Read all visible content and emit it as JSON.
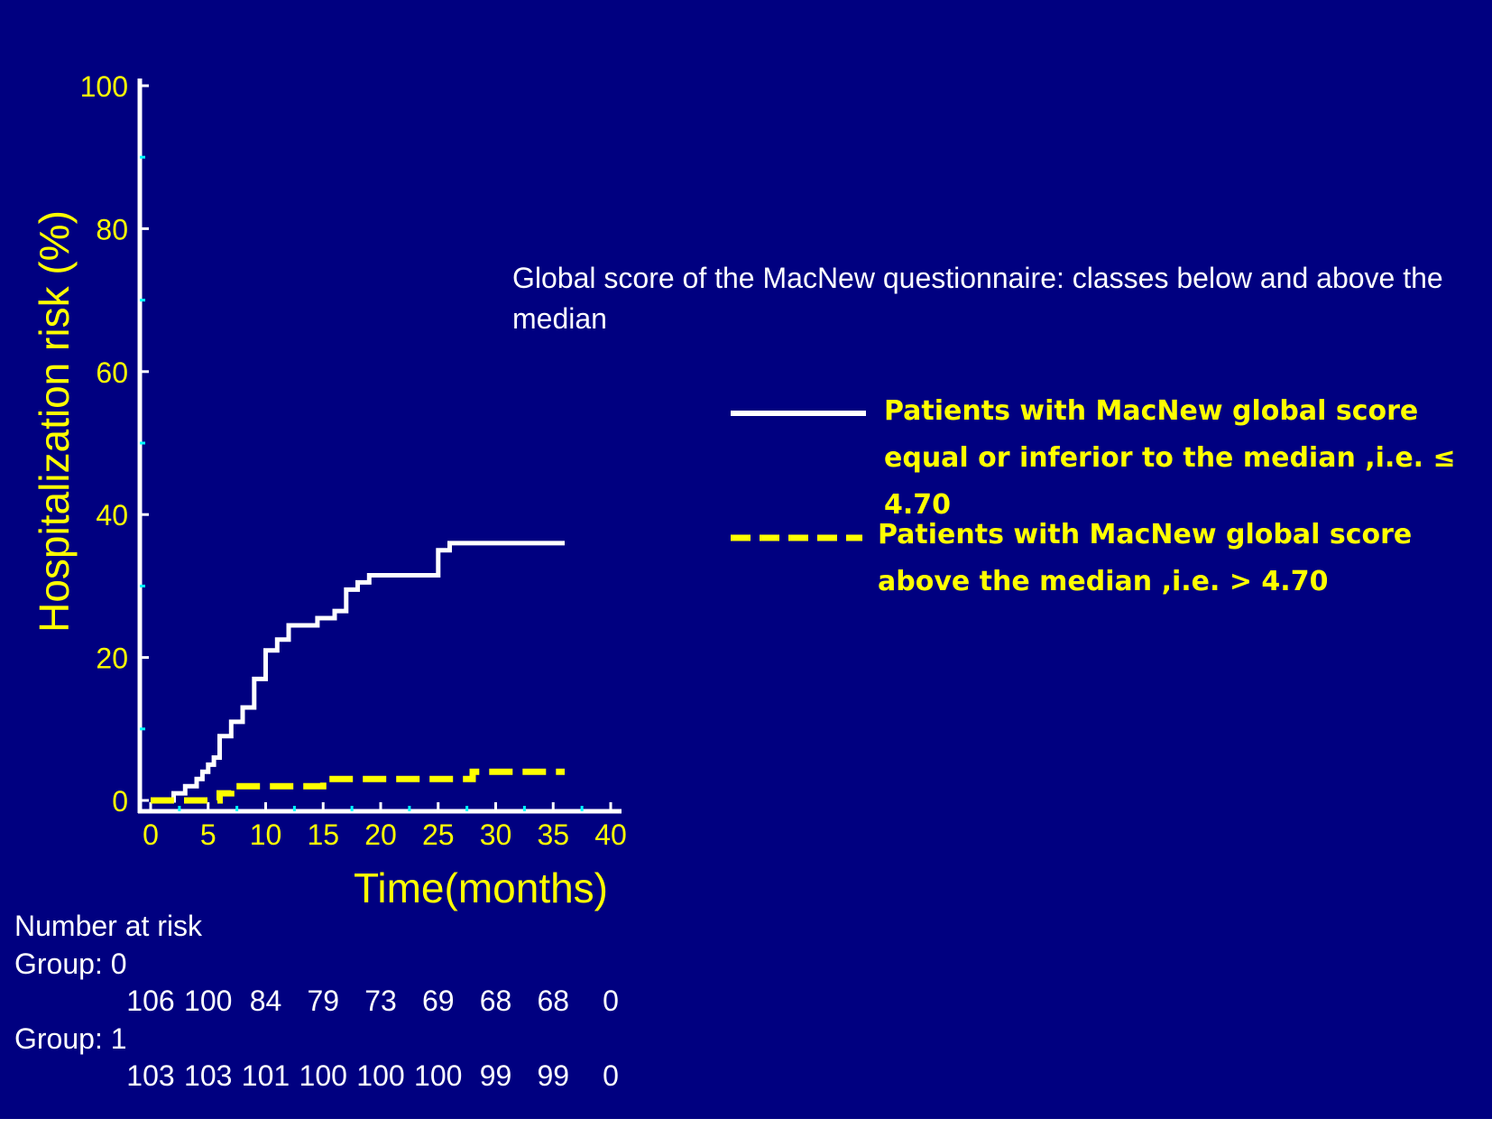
{
  "chart_data": {
    "type": "line",
    "xlabel": "Time(months)",
    "ylabel": "Hospitalization risk (%)",
    "xlim": [
      0,
      40
    ],
    "ylim": [
      0,
      100
    ],
    "xticks": [
      0,
      5,
      10,
      15,
      20,
      25,
      30,
      35,
      40
    ],
    "yticks": [
      0,
      20,
      40,
      60,
      80,
      100
    ],
    "grid": false,
    "legend_position": "right",
    "annotation": "Global score of the  MacNew questionnaire: classes below and above the median",
    "series": [
      {
        "name": "Patients with MacNew global score  equal or inferior  to the median ,i.e. ≤ 4.70",
        "style": "solid",
        "color": "#ffffff",
        "step": true,
        "points": [
          [
            0,
            0
          ],
          [
            2,
            0
          ],
          [
            2,
            1
          ],
          [
            3,
            1
          ],
          [
            3,
            2
          ],
          [
            4,
            2
          ],
          [
            4,
            3
          ],
          [
            4.5,
            3
          ],
          [
            4.5,
            4
          ],
          [
            5,
            4
          ],
          [
            5,
            5
          ],
          [
            5.5,
            5
          ],
          [
            5.5,
            6
          ],
          [
            6,
            6
          ],
          [
            6,
            9
          ],
          [
            7,
            9
          ],
          [
            7,
            11
          ],
          [
            8,
            11
          ],
          [
            8,
            13
          ],
          [
            9,
            13
          ],
          [
            9,
            17
          ],
          [
            10,
            17
          ],
          [
            10,
            21
          ],
          [
            11,
            21
          ],
          [
            11,
            22.5
          ],
          [
            12,
            22.5
          ],
          [
            12,
            24.5
          ],
          [
            14.5,
            24.5
          ],
          [
            14.5,
            25.5
          ],
          [
            16,
            25.5
          ],
          [
            16,
            26.5
          ],
          [
            17,
            26.5
          ],
          [
            17,
            29.5
          ],
          [
            18,
            29.5
          ],
          [
            18,
            30.5
          ],
          [
            19,
            30.5
          ],
          [
            19,
            31.5
          ],
          [
            25,
            31.5
          ],
          [
            25,
            35
          ],
          [
            26,
            35
          ],
          [
            26,
            36
          ],
          [
            36,
            36
          ]
        ]
      },
      {
        "name": "Patients with MacNew global score  above the median ,i.e. > 4.70",
        "style": "dashed",
        "color": "#ffff00",
        "step": true,
        "points": [
          [
            0,
            0
          ],
          [
            6,
            0
          ],
          [
            6,
            1
          ],
          [
            7,
            1
          ],
          [
            7,
            2
          ],
          [
            15,
            2
          ],
          [
            15,
            3
          ],
          [
            28,
            3
          ],
          [
            28,
            4
          ],
          [
            36,
            4
          ]
        ]
      }
    ]
  },
  "risk_table": {
    "title": "Number at risk",
    "groups": [
      {
        "label": "Group: 0",
        "values": [
          "106",
          "100",
          "84",
          "79",
          "73",
          "69",
          "68",
          "68",
          "0"
        ]
      },
      {
        "label": "Group: 1",
        "values": [
          "103",
          "103",
          "101",
          "100",
          "100",
          "100",
          "99",
          "99",
          "0"
        ]
      }
    ]
  },
  "colors": {
    "background": "#000080",
    "axis": "#ffffff",
    "tick_labels": "#ffff00",
    "minor_ticks": "#00ffff"
  }
}
